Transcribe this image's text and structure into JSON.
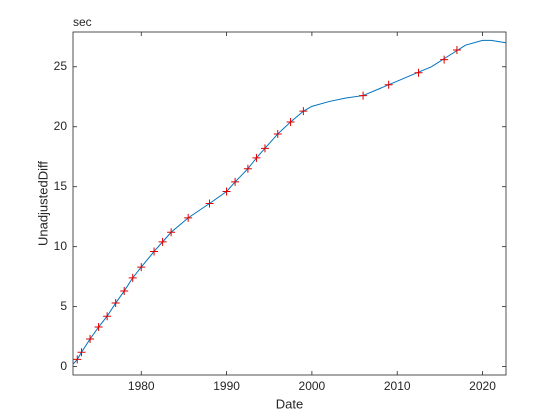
{
  "chart_data": {
    "type": "line",
    "unit_label": "sec",
    "x_label": "Date",
    "y_label": "UnadjustedDiff",
    "xlim": [
      1972,
      2022.75
    ],
    "ylim": [
      -0.7,
      27.9
    ],
    "xticks": [
      1980,
      1990,
      2000,
      2010,
      2020
    ],
    "yticks": [
      0,
      5,
      10,
      15,
      20,
      25
    ],
    "series": [
      {
        "color": "#0072bd",
        "marker": "none",
        "x": [
          1972,
          1972.5,
          1973,
          1974,
          1975,
          1976,
          1977,
          1978,
          1979,
          1980,
          1981.5,
          1982.5,
          1983.5,
          1985.5,
          1988,
          1990,
          1991,
          1992.5,
          1993.5,
          1994.5,
          1996,
          1997.5,
          1999,
          2000,
          2002,
          2004,
          2006,
          2008,
          2010,
          2012,
          2014,
          2016,
          2018,
          2020,
          2021,
          2022.75
        ],
        "values": [
          0.2,
          0.6,
          1.2,
          2.3,
          3.3,
          4.2,
          5.3,
          6.3,
          7.4,
          8.3,
          9.6,
          10.4,
          11.2,
          12.4,
          13.6,
          14.6,
          15.4,
          16.5,
          17.4,
          18.2,
          19.4,
          20.4,
          21.3,
          21.7,
          22.1,
          22.4,
          22.6,
          23.2,
          23.8,
          24.4,
          25.0,
          25.9,
          26.8,
          27.2,
          27.2,
          27.0
        ]
      },
      {
        "color": "#e00000",
        "marker": "+",
        "x": [
          1972.5,
          1973,
          1974,
          1975,
          1976,
          1977,
          1978,
          1979,
          1980,
          1981.5,
          1982.5,
          1983.5,
          1985.5,
          1988,
          1990,
          1991,
          1992.5,
          1993.5,
          1994.5,
          1996,
          1997.5,
          1999,
          2006,
          2009,
          2012.5,
          2015.5,
          2017
        ],
        "values": [
          0.6,
          1.2,
          2.3,
          3.3,
          4.2,
          5.3,
          6.3,
          7.4,
          8.3,
          9.6,
          10.4,
          11.2,
          12.4,
          13.6,
          14.6,
          15.4,
          16.5,
          17.4,
          18.2,
          19.4,
          20.4,
          21.3,
          22.6,
          23.5,
          24.5,
          25.6,
          26.4
        ]
      }
    ]
  }
}
